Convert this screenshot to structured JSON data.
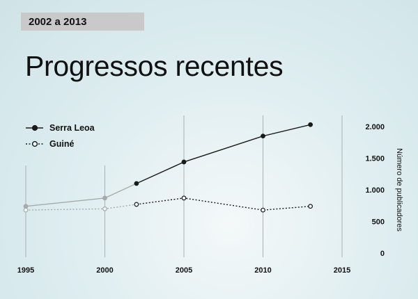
{
  "header": {
    "tag": "2002 a 2013",
    "title": "Progressos recentes"
  },
  "chart_data": {
    "type": "line",
    "ylabel": "Número de publicadores",
    "xlim": [
      1995,
      2015
    ],
    "ylim": [
      0,
      2000
    ],
    "x_ticks": [
      {
        "value": 1995,
        "label": "1995"
      },
      {
        "value": 2000,
        "label": "2000"
      },
      {
        "value": 2005,
        "label": "2005"
      },
      {
        "value": 2010,
        "label": "2010"
      },
      {
        "value": 2015,
        "label": "2015"
      }
    ],
    "y_ticks": [
      {
        "value": 0,
        "label": "0"
      },
      {
        "value": 500,
        "label": "500"
      },
      {
        "value": 1000,
        "label": "1.000"
      },
      {
        "value": 1500,
        "label": "1.500"
      },
      {
        "value": 2000,
        "label": "2.000"
      }
    ],
    "highlight_from": 2002,
    "legend_position": "top-left",
    "series": [
      {
        "name": "Serra Leoa",
        "style": "solid",
        "marker": "filled",
        "color": "#1a1a1a",
        "muted_color": "#a9a9a9",
        "x": [
          1995,
          2000,
          2002,
          2005,
          2010,
          2013
        ],
        "values": [
          740,
          870,
          1100,
          1440,
          1850,
          2030
        ]
      },
      {
        "name": "Guiné",
        "style": "dotted",
        "marker": "open",
        "color": "#1a1a1a",
        "muted_color": "#a9a9a9",
        "x": [
          1995,
          2000,
          2002,
          2005,
          2010,
          2013
        ],
        "values": [
          680,
          700,
          770,
          870,
          680,
          740
        ]
      }
    ]
  }
}
